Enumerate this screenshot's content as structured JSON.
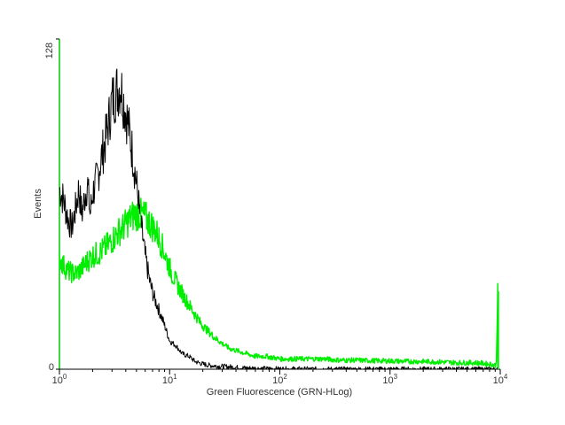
{
  "chart_data": {
    "type": "line",
    "title": "",
    "xlabel": "Green Fluorescence (GRN-HLog)",
    "ylabel": "Events",
    "x_scale": "log",
    "xlim": [
      1,
      10000
    ],
    "ylim": [
      0,
      128
    ],
    "x_ticks": [
      {
        "value": 1,
        "base": "10",
        "exp": "0"
      },
      {
        "value": 10,
        "base": "10",
        "exp": "1"
      },
      {
        "value": 100,
        "base": "10",
        "exp": "2"
      },
      {
        "value": 1000,
        "base": "10",
        "exp": "3"
      },
      {
        "value": 10000,
        "base": "10",
        "exp": "4"
      }
    ],
    "y_ticks": [
      {
        "value": 0,
        "label": "0"
      },
      {
        "value": 128,
        "label": "128"
      }
    ],
    "grid": false,
    "series": [
      {
        "color": "#000000",
        "x": [
          1.0,
          1.1,
          1.2,
          1.3,
          1.4,
          1.5,
          1.6,
          1.7,
          1.8,
          1.9,
          2.0,
          2.2,
          2.4,
          2.6,
          2.8,
          3.0,
          3.3,
          3.6,
          3.9,
          4.2,
          4.6,
          5.0,
          5.5,
          6.0,
          6.6,
          7.2,
          8.0,
          9.0,
          10,
          11.5,
          13,
          15,
          17,
          20,
          23,
          27,
          32,
          38,
          45,
          55,
          70,
          100,
          200,
          1000,
          9500
        ],
        "y": [
          70,
          65,
          58,
          55,
          62,
          70,
          60,
          67,
          72,
          60,
          68,
          74,
          82,
          88,
          96,
          104,
          108,
          110,
          102,
          95,
          84,
          72,
          56,
          44,
          34,
          28,
          23,
          17,
          11,
          9,
          6,
          5,
          3,
          2,
          1.5,
          1.2,
          1,
          0.8,
          0.5,
          0.4,
          0.2,
          0.1,
          0,
          0,
          0
        ]
      },
      {
        "color": "#00ee00",
        "x": [
          1.0,
          1.1,
          1.2,
          1.4,
          1.6,
          1.8,
          2.0,
          2.3,
          2.6,
          3.0,
          3.4,
          3.8,
          4.3,
          4.8,
          5.4,
          6.0,
          6.8,
          7.6,
          8.5,
          9.5,
          10.5,
          12,
          14,
          16,
          19,
          22,
          26,
          30,
          35,
          42,
          50,
          60,
          75,
          100,
          130,
          180,
          250,
          350,
          500,
          700,
          1000,
          1500,
          2000,
          3000,
          4000,
          6000,
          8000,
          9200,
          9500,
          9550,
          9600
        ],
        "y": [
          43,
          40,
          38,
          37,
          39,
          42,
          44,
          45,
          47,
          50,
          53,
          55,
          58,
          60,
          60,
          59,
          56,
          53,
          48,
          42,
          37,
          32,
          27,
          23,
          18,
          15,
          12,
          10,
          8,
          7,
          6,
          5,
          5,
          4,
          4,
          4,
          4,
          3.5,
          3.5,
          3.3,
          3.2,
          3,
          3,
          2.8,
          2.5,
          2.5,
          2,
          1.5,
          30,
          30,
          0
        ]
      }
    ]
  }
}
